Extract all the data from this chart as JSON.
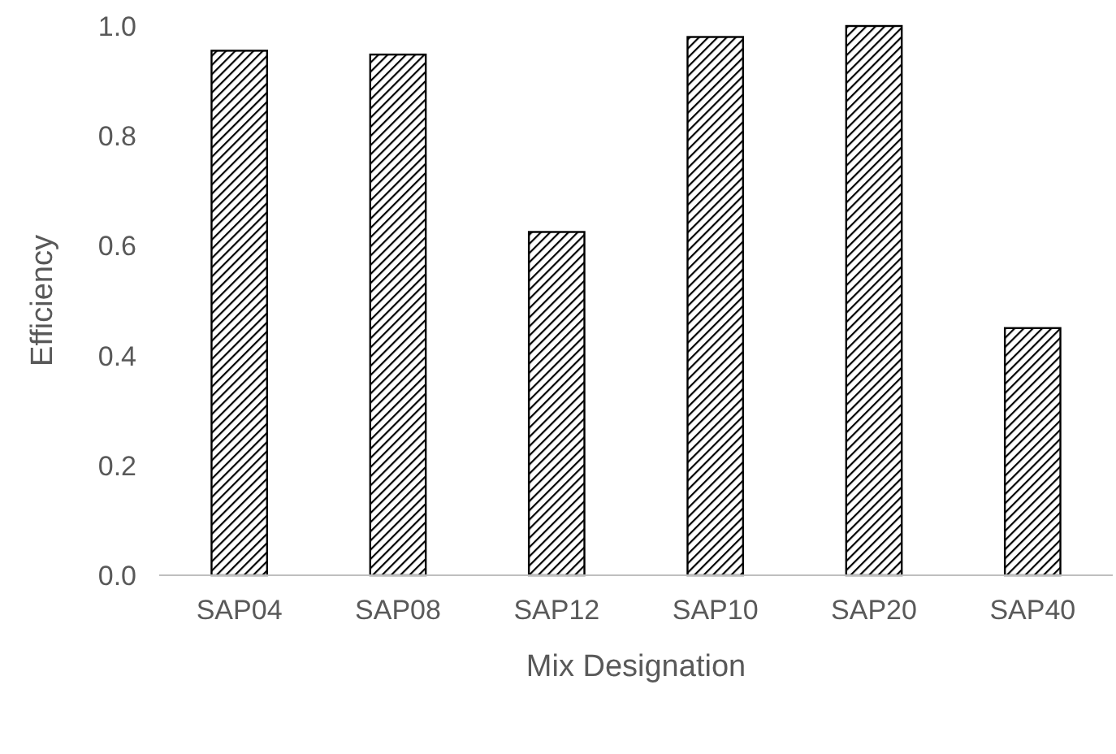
{
  "chart_data": {
    "type": "bar",
    "xlabel": "Mix Designation",
    "ylabel": "Efficiency",
    "categories": [
      "SAP04",
      "SAP08",
      "SAP12",
      "SAP10",
      "SAP20",
      "SAP40"
    ],
    "values": [
      0.955,
      0.948,
      0.625,
      0.98,
      1.0,
      0.45
    ],
    "color": "#000000",
    "ylim": [
      0,
      1
    ],
    "yticks": [
      {
        "value": 0,
        "label": "0.0"
      },
      {
        "value": 0.2,
        "label": "0.2"
      },
      {
        "value": 0.4,
        "label": "0.4"
      },
      {
        "value": 0.6,
        "label": "0.6"
      },
      {
        "value": 0.8,
        "label": "0.8"
      },
      {
        "value": 1,
        "label": "1.0"
      }
    ],
    "grid": false
  }
}
